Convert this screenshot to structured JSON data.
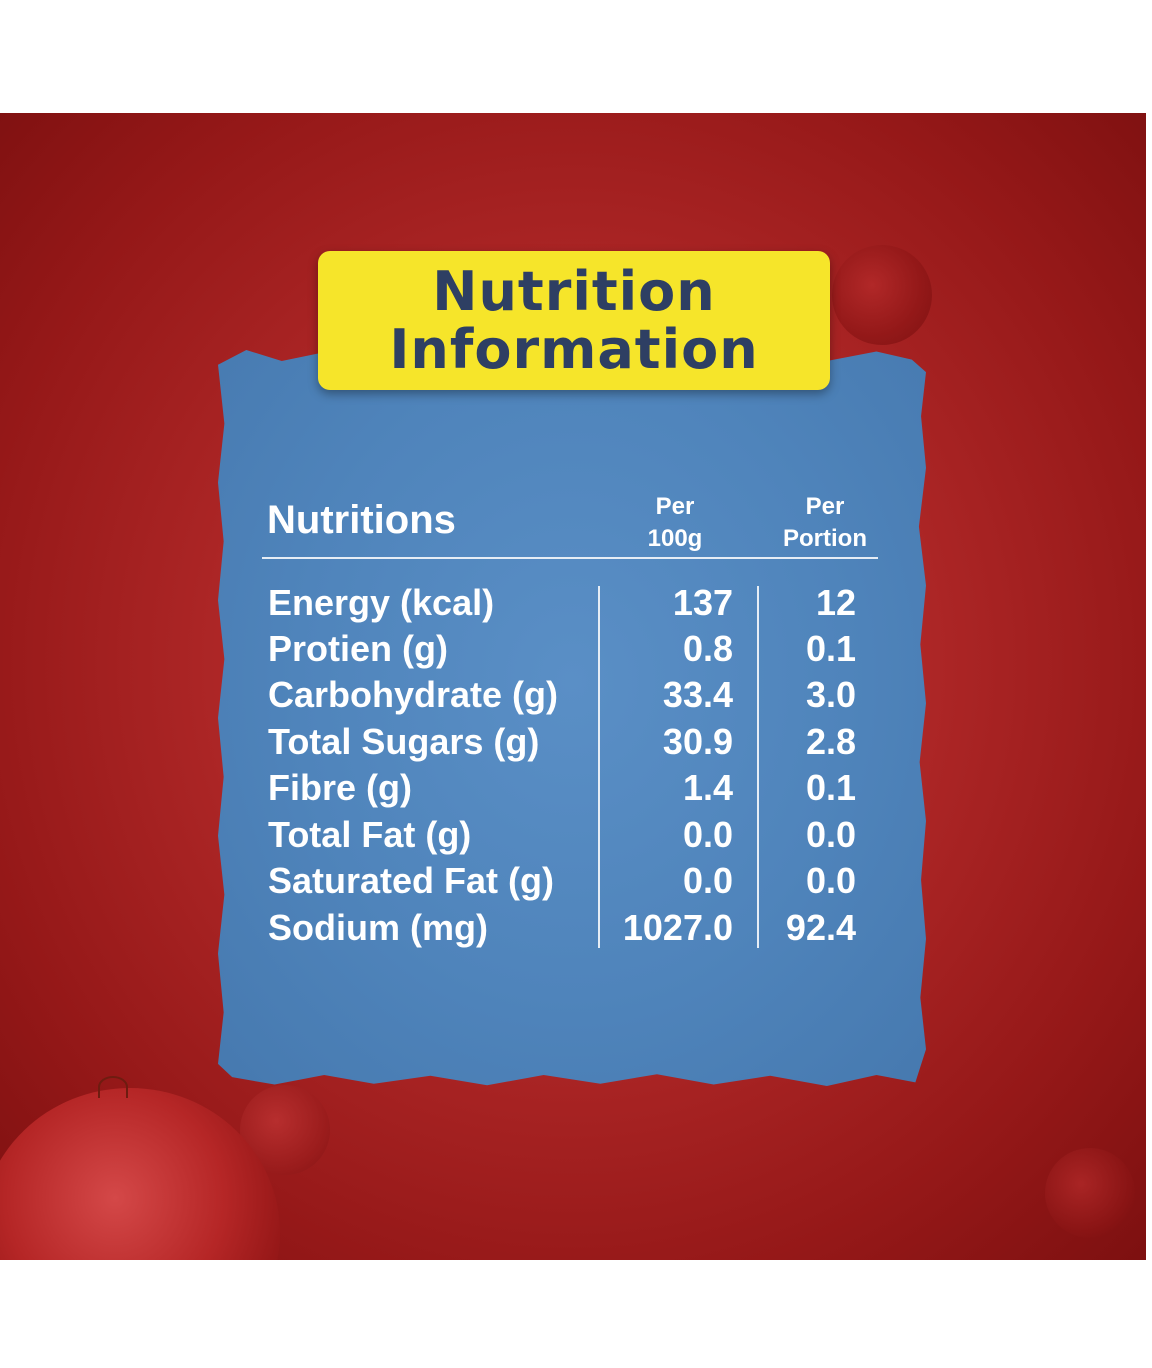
{
  "title": {
    "line1": "Nutrition",
    "line2": "Information"
  },
  "table": {
    "header_label": "Nutritions",
    "col1_line1": "Per",
    "col1_line2": "100g",
    "col2_line1": "Per",
    "col2_line2": "Portion",
    "rows": [
      {
        "label": "Energy (kcal)",
        "per_100g": "137",
        "per_portion": "12"
      },
      {
        "label": "Protien (g)",
        "per_100g": "0.8",
        "per_portion": "0.1"
      },
      {
        "label": "Carbohydrate (g)",
        "per_100g": "33.4",
        "per_portion": "3.0"
      },
      {
        "label": "Total Sugars (g)",
        "per_100g": "30.9",
        "per_portion": "2.8"
      },
      {
        "label": "Fibre (g)",
        "per_100g": "1.4",
        "per_portion": "0.1"
      },
      {
        "label": "Total Fat (g)",
        "per_100g": "0.0",
        "per_portion": "0.0"
      },
      {
        "label": "Saturated Fat (g)",
        "per_100g": "0.0",
        "per_portion": "0.0"
      },
      {
        "label": "Sodium (mg)",
        "per_100g": "1027.0",
        "per_portion": "92.4"
      }
    ]
  },
  "colors": {
    "background_red": "#b02828",
    "paper_blue": "#5087bd",
    "title_yellow": "#f6e52a",
    "title_text": "#2e3f63",
    "table_text": "#ffffff"
  }
}
